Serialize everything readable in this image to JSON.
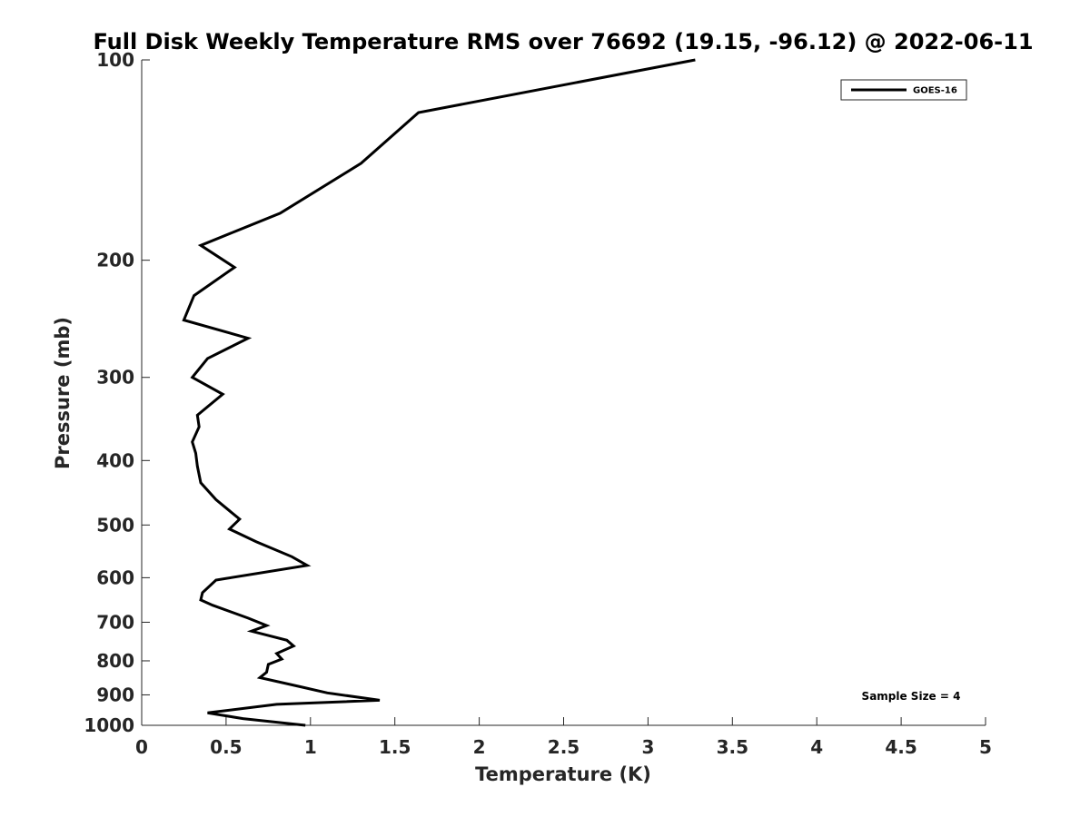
{
  "chart_data": {
    "type": "line",
    "title": "Full Disk Weekly Temperature RMS over 76692 (19.15, -96.12) @ 2022-06-11",
    "xlabel": "Temperature (K)",
    "ylabel": "Pressure (mb)",
    "xlim": [
      0,
      5
    ],
    "ylim": [
      100,
      1000
    ],
    "y_scale": "log",
    "y_reversed": true,
    "x_ticks": [
      0,
      0.5,
      1,
      1.5,
      2,
      2.5,
      3,
      3.5,
      4,
      4.5,
      5
    ],
    "x_tick_labels": [
      "0",
      "0.5",
      "1",
      "1.5",
      "2",
      "2.5",
      "3",
      "3.5",
      "4",
      "4.5",
      "5"
    ],
    "y_ticks": [
      100,
      200,
      300,
      400,
      500,
      600,
      700,
      800,
      900,
      1000
    ],
    "y_tick_labels": [
      "100",
      "200",
      "300",
      "400",
      "500",
      "600",
      "700",
      "800",
      "900",
      "1000"
    ],
    "grid": false,
    "legend_position": "top-right",
    "annotation": "Sample Size = 4",
    "series": [
      {
        "name": "GOES-16",
        "color": "#000000",
        "x": [
          3.28,
          1.64,
          1.3,
          0.82,
          0.35,
          0.55,
          0.31,
          0.25,
          0.63,
          0.39,
          0.3,
          0.48,
          0.33,
          0.34,
          0.3,
          0.32,
          0.33,
          0.35,
          0.44,
          0.58,
          0.52,
          0.68,
          0.89,
          0.98,
          0.44,
          0.36,
          0.35,
          0.42,
          0.63,
          0.74,
          0.65,
          0.86,
          0.9,
          0.8,
          0.83,
          0.75,
          0.74,
          0.7,
          0.94,
          1.1,
          1.41,
          0.8,
          0.39,
          0.6,
          0.97
        ],
        "y": [
          100,
          120,
          143,
          170,
          190,
          205,
          226,
          246,
          262,
          281,
          300,
          318,
          342,
          356,
          375,
          390,
          408,
          432,
          458,
          490,
          507,
          530,
          558,
          575,
          605,
          632,
          648,
          660,
          690,
          708,
          722,
          745,
          760,
          780,
          795,
          810,
          832,
          848,
          875,
          894,
          917,
          930,
          958,
          977,
          1000
        ]
      }
    ]
  }
}
